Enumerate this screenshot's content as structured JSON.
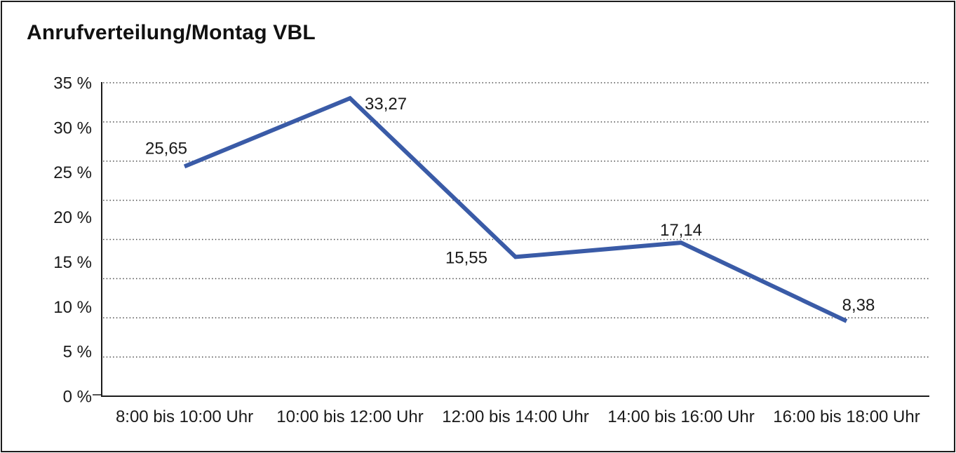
{
  "colors": {
    "line": "#3a5ba7",
    "axis": "#1c1c1c",
    "grid": "#4a4a4a",
    "text": "#1a1a1a",
    "background": "#ffffff"
  },
  "chart_data": {
    "type": "line",
    "title": "Anrufverteilung/Montag VBL",
    "categories": [
      "8:00 bis 10:00 Uhr",
      "10:00 bis 12:00 Uhr",
      "12:00 bis 14:00 Uhr",
      "14:00 bis 16:00 Uhr",
      "16:00 bis 18:00 Uhr"
    ],
    "values": [
      25.65,
      33.27,
      15.55,
      17.14,
      8.38
    ],
    "point_labels": [
      "25,65",
      "33,27",
      "15,55",
      "17,14",
      "8,38"
    ],
    "y_tick_labels": [
      "35 %",
      "30 %",
      "25 %",
      "20 %",
      "15 %",
      "10 %",
      "5 %",
      "0 %"
    ],
    "y_tick_values": [
      35,
      30,
      25,
      20,
      15,
      10,
      5,
      0
    ],
    "ylim": [
      0,
      35
    ],
    "y_tick_step": 5,
    "gridline_count": 9,
    "grid": "dotted-horizontal",
    "legend": "none",
    "xlabel": "",
    "ylabel": ""
  }
}
